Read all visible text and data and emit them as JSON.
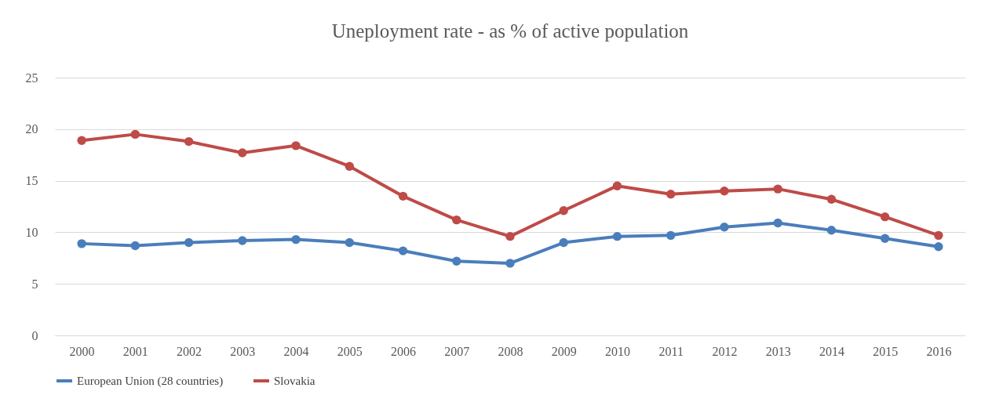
{
  "chart_data": {
    "type": "line",
    "title": "Uneployment rate - as % of active population",
    "categories": [
      "2000",
      "2001",
      "2002",
      "2003",
      "2004",
      "2005",
      "2006",
      "2007",
      "2008",
      "2009",
      "2010",
      "2011",
      "2012",
      "2013",
      "2014",
      "2015",
      "2016"
    ],
    "series": [
      {
        "name": "European Union (28 countries)",
        "color": "#4a7ebb",
        "values": [
          8.9,
          8.7,
          9.0,
          9.2,
          9.3,
          9.0,
          8.2,
          7.2,
          7.0,
          9.0,
          9.6,
          9.7,
          10.5,
          10.9,
          10.2,
          9.4,
          8.6
        ]
      },
      {
        "name": "Slovakia",
        "color": "#be4b48",
        "values": [
          18.9,
          19.5,
          18.8,
          17.7,
          18.4,
          16.4,
          13.5,
          11.2,
          9.6,
          12.1,
          14.5,
          13.7,
          14.0,
          14.2,
          13.2,
          11.5,
          9.7
        ]
      }
    ],
    "ylim": [
      0,
      25
    ],
    "yticks": [
      0,
      5,
      10,
      15,
      20,
      25
    ],
    "grid": "y",
    "legend": "bottom",
    "marker": "circle",
    "line_style": "solid"
  }
}
